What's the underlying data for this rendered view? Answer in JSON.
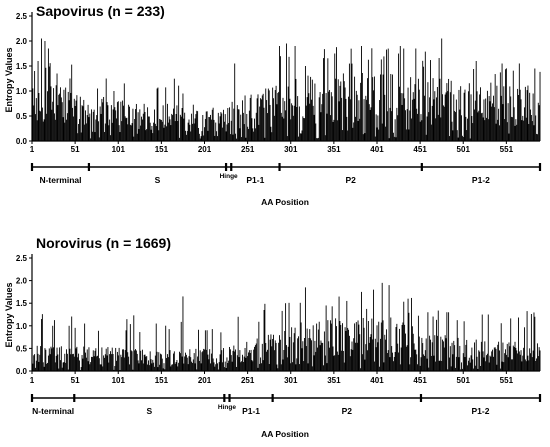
{
  "chart_data": [
    {
      "type": "bar",
      "title": "Sapovirus (n = 233)",
      "xlabel": "AA Position",
      "ylabel": "Entropy Values",
      "ylim": [
        0,
        2.5
      ],
      "yticks": [
        "0.0",
        "0.5",
        "1.0",
        "1.5",
        "2.0",
        "2.5"
      ],
      "xticks": [
        1,
        51,
        101,
        151,
        201,
        251,
        301,
        351,
        401,
        451,
        501,
        551
      ],
      "x_range": [
        1,
        590
      ],
      "domains": [
        {
          "name": "N-terminal",
          "start": 1,
          "end": 67
        },
        {
          "name": "S",
          "start": 67,
          "end": 226
        },
        {
          "name": "Hinge",
          "start": 226,
          "end": 232
        },
        {
          "name": "P1-1",
          "start": 232,
          "end": 288
        },
        {
          "name": "P2",
          "start": 288,
          "end": 453
        },
        {
          "name": "P1-2",
          "start": 453,
          "end": 590
        }
      ],
      "peaks": [
        {
          "x": 4,
          "y": 1.4
        },
        {
          "x": 8,
          "y": 1.6
        },
        {
          "x": 12,
          "y": 2.05
        },
        {
          "x": 16,
          "y": 2.0
        },
        {
          "x": 20,
          "y": 1.85
        },
        {
          "x": 30,
          "y": 1.35
        },
        {
          "x": 45,
          "y": 1.25
        },
        {
          "x": 77,
          "y": 1.05
        },
        {
          "x": 96,
          "y": 1.0
        },
        {
          "x": 146,
          "y": 1.05
        },
        {
          "x": 176,
          "y": 0.95
        },
        {
          "x": 236,
          "y": 1.55
        },
        {
          "x": 288,
          "y": 1.9
        },
        {
          "x": 296,
          "y": 1.95
        },
        {
          "x": 306,
          "y": 1.9
        },
        {
          "x": 318,
          "y": 1.5
        },
        {
          "x": 352,
          "y": 1.75
        },
        {
          "x": 383,
          "y": 1.9
        },
        {
          "x": 428,
          "y": 1.9
        },
        {
          "x": 446,
          "y": 1.85
        },
        {
          "x": 476,
          "y": 2.05
        },
        {
          "x": 516,
          "y": 1.6
        },
        {
          "x": 546,
          "y": 1.55
        },
        {
          "x": 584,
          "y": 1.45
        }
      ],
      "baseline": [
        {
          "x": 1,
          "y": 0.9
        },
        {
          "x": 35,
          "y": 0.8
        },
        {
          "x": 70,
          "y": 0.65
        },
        {
          "x": 140,
          "y": 0.55
        },
        {
          "x": 225,
          "y": 0.5
        },
        {
          "x": 245,
          "y": 0.65
        },
        {
          "x": 285,
          "y": 0.8
        },
        {
          "x": 320,
          "y": 0.95
        },
        {
          "x": 380,
          "y": 1.0
        },
        {
          "x": 450,
          "y": 0.95
        },
        {
          "x": 520,
          "y": 0.85
        },
        {
          "x": 590,
          "y": 0.8
        }
      ]
    },
    {
      "type": "bar",
      "title": "Norovirus (n = 1669)",
      "xlabel": "AA Position",
      "ylabel": "Entropy Values",
      "ylim": [
        0,
        2.5
      ],
      "yticks": [
        "0.0",
        "0.5",
        "1.0",
        "1.5",
        "2.0",
        "2.5"
      ],
      "xticks": [
        1,
        51,
        101,
        151,
        201,
        251,
        301,
        351,
        401,
        451,
        501,
        551
      ],
      "x_range": [
        1,
        590
      ],
      "domains": [
        {
          "name": "N-terminal",
          "start": 1,
          "end": 50
        },
        {
          "name": "S",
          "start": 50,
          "end": 224
        },
        {
          "name": "Hinge",
          "start": 224,
          "end": 230
        },
        {
          "name": "P1-1",
          "start": 230,
          "end": 280
        },
        {
          "name": "P2",
          "start": 280,
          "end": 452
        },
        {
          "name": "P1-2",
          "start": 452,
          "end": 590
        }
      ],
      "peaks": [
        {
          "x": 12,
          "y": 1.15
        },
        {
          "x": 25,
          "y": 1.0
        },
        {
          "x": 44,
          "y": 1.0
        },
        {
          "x": 62,
          "y": 1.05
        },
        {
          "x": 110,
          "y": 0.9
        },
        {
          "x": 145,
          "y": 1.05
        },
        {
          "x": 176,
          "y": 1.65
        },
        {
          "x": 202,
          "y": 0.9
        },
        {
          "x": 240,
          "y": 1.2
        },
        {
          "x": 270,
          "y": 1.35
        },
        {
          "x": 295,
          "y": 1.5
        },
        {
          "x": 318,
          "y": 1.85
        },
        {
          "x": 342,
          "y": 1.45
        },
        {
          "x": 366,
          "y": 1.55
        },
        {
          "x": 383,
          "y": 1.75
        },
        {
          "x": 397,
          "y": 1.8
        },
        {
          "x": 407,
          "y": 1.95
        },
        {
          "x": 415,
          "y": 1.9
        },
        {
          "x": 437,
          "y": 1.6
        },
        {
          "x": 460,
          "y": 1.3
        },
        {
          "x": 482,
          "y": 1.3
        },
        {
          "x": 502,
          "y": 1.1
        },
        {
          "x": 530,
          "y": 1.25
        },
        {
          "x": 584,
          "y": 1.2
        }
      ],
      "baseline": [
        {
          "x": 1,
          "y": 0.4
        },
        {
          "x": 60,
          "y": 0.4
        },
        {
          "x": 140,
          "y": 0.35
        },
        {
          "x": 220,
          "y": 0.35
        },
        {
          "x": 260,
          "y": 0.55
        },
        {
          "x": 300,
          "y": 0.75
        },
        {
          "x": 360,
          "y": 0.85
        },
        {
          "x": 420,
          "y": 0.85
        },
        {
          "x": 460,
          "y": 0.6
        },
        {
          "x": 520,
          "y": 0.5
        },
        {
          "x": 590,
          "y": 0.45
        }
      ]
    }
  ]
}
